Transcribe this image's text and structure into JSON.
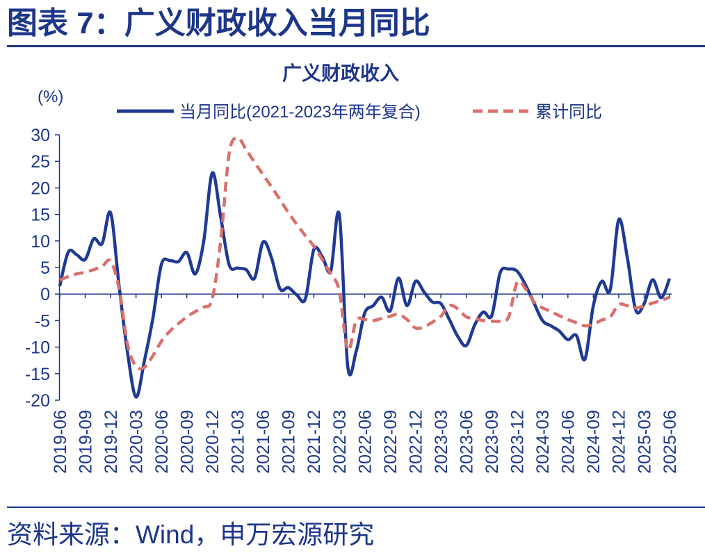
{
  "header": {
    "title": "图表 7：广义财政收入当月同比"
  },
  "footer": {
    "source": "资料来源：Wind，申万宏源研究"
  },
  "colors": {
    "ink": "#1d3689"
  },
  "chart_data": {
    "type": "line",
    "title": "广义财政收入",
    "ylabel": "(%)",
    "xlabel": "",
    "ylim": [
      -20,
      30
    ],
    "yticks": [
      30,
      25,
      20,
      15,
      10,
      5,
      0,
      -5,
      -10,
      -15,
      -20
    ],
    "grid": false,
    "legend": "top",
    "xticks": [
      "2019-06",
      "2019-09",
      "2019-12",
      "2020-03",
      "2020-06",
      "2020-09",
      "2020-12",
      "2021-03",
      "2021-06",
      "2021-09",
      "2021-12",
      "2022-03",
      "2022-06",
      "2022-09",
      "2022-12",
      "2023-03",
      "2023-06",
      "2023-09",
      "2023-12",
      "2024-03",
      "2024-06",
      "2024-09",
      "2024-12",
      "2025-03",
      "2025-06"
    ],
    "x": [
      "2019-06",
      "2019-07",
      "2019-08",
      "2019-09",
      "2019-10",
      "2019-11",
      "2019-12",
      "2020-01",
      "2020-02",
      "2020-03",
      "2020-04",
      "2020-05",
      "2020-06",
      "2020-07",
      "2020-08",
      "2020-09",
      "2020-10",
      "2020-11",
      "2020-12",
      "2021-01",
      "2021-02",
      "2021-03",
      "2021-04",
      "2021-05",
      "2021-06",
      "2021-07",
      "2021-08",
      "2021-09",
      "2021-10",
      "2021-11",
      "2021-12",
      "2022-01",
      "2022-02",
      "2022-03",
      "2022-04",
      "2022-05",
      "2022-06",
      "2022-07",
      "2022-08",
      "2022-09",
      "2022-10",
      "2022-11",
      "2022-12",
      "2023-01",
      "2023-02",
      "2023-03",
      "2023-04",
      "2023-05",
      "2023-06",
      "2023-07",
      "2023-08",
      "2023-09",
      "2023-10",
      "2023-11",
      "2023-12",
      "2024-01",
      "2024-02",
      "2024-03",
      "2024-04",
      "2024-05",
      "2024-06",
      "2024-07",
      "2024-08",
      "2024-09",
      "2024-10",
      "2024-11",
      "2024-12",
      "2025-01",
      "2025-02",
      "2025-03",
      "2025-04",
      "2025-05",
      "2025-06"
    ],
    "series": [
      {
        "name": "当月同比(2021-2023年两年复合)",
        "color": "#1f3a93",
        "dashed": false,
        "values": [
          1.5,
          7.9,
          7.4,
          6.5,
          10.4,
          9.5,
          15.3,
          1.5,
          -11.0,
          -19.4,
          -12.5,
          -4.5,
          5.6,
          6.3,
          6.1,
          7.8,
          3.8,
          10.0,
          22.8,
          14.5,
          5.5,
          4.9,
          4.6,
          3.0,
          9.8,
          6.8,
          1.0,
          1.2,
          -0.2,
          -0.9,
          8.4,
          7.0,
          4.4,
          15.0,
          -13.6,
          -10.8,
          -3.6,
          -2.2,
          -0.6,
          -3.2,
          3.0,
          -2.2,
          2.4,
          0.4,
          -1.5,
          -1.8,
          -4.8,
          -8.0,
          -9.7,
          -5.8,
          -3.4,
          -4.1,
          4.0,
          4.7,
          4.3,
          1.7,
          -1.7,
          -5.0,
          -6.0,
          -7.0,
          -8.6,
          -7.8,
          -12.3,
          -2.2,
          2.4,
          0.8,
          14.0,
          7.0,
          -3.0,
          -1.8,
          2.7,
          -0.7,
          2.9
        ]
      },
      {
        "name": "累计同比",
        "color": "#d9706b",
        "dashed": true,
        "values": [
          2.6,
          3.3,
          3.8,
          4.1,
          4.6,
          5.2,
          6.2,
          1.0,
          -9.5,
          -13.6,
          -13.8,
          -11.6,
          -8.9,
          -7.0,
          -5.6,
          -4.3,
          -3.3,
          -2.5,
          -0.9,
          10.0,
          26.5,
          29.4,
          27.2,
          24.8,
          22.5,
          20.2,
          17.8,
          15.3,
          13.1,
          11.0,
          9.0,
          6.5,
          3.8,
          0.6,
          -10.5,
          -5.0,
          -4.8,
          -5.0,
          -4.6,
          -4.2,
          -3.8,
          -4.8,
          -6.4,
          -6.2,
          -5.3,
          -4.2,
          -2.2,
          -2.8,
          -4.3,
          -4.6,
          -5.0,
          -5.1,
          -5.1,
          -4.3,
          2.2,
          1.0,
          -1.5,
          -2.6,
          -3.3,
          -4.1,
          -4.8,
          -5.4,
          -6.0,
          -5.7,
          -4.9,
          -4.3,
          -2.0,
          -2.2,
          -2.6,
          -2.2,
          -1.7,
          -1.2,
          -0.6
        ]
      }
    ]
  }
}
